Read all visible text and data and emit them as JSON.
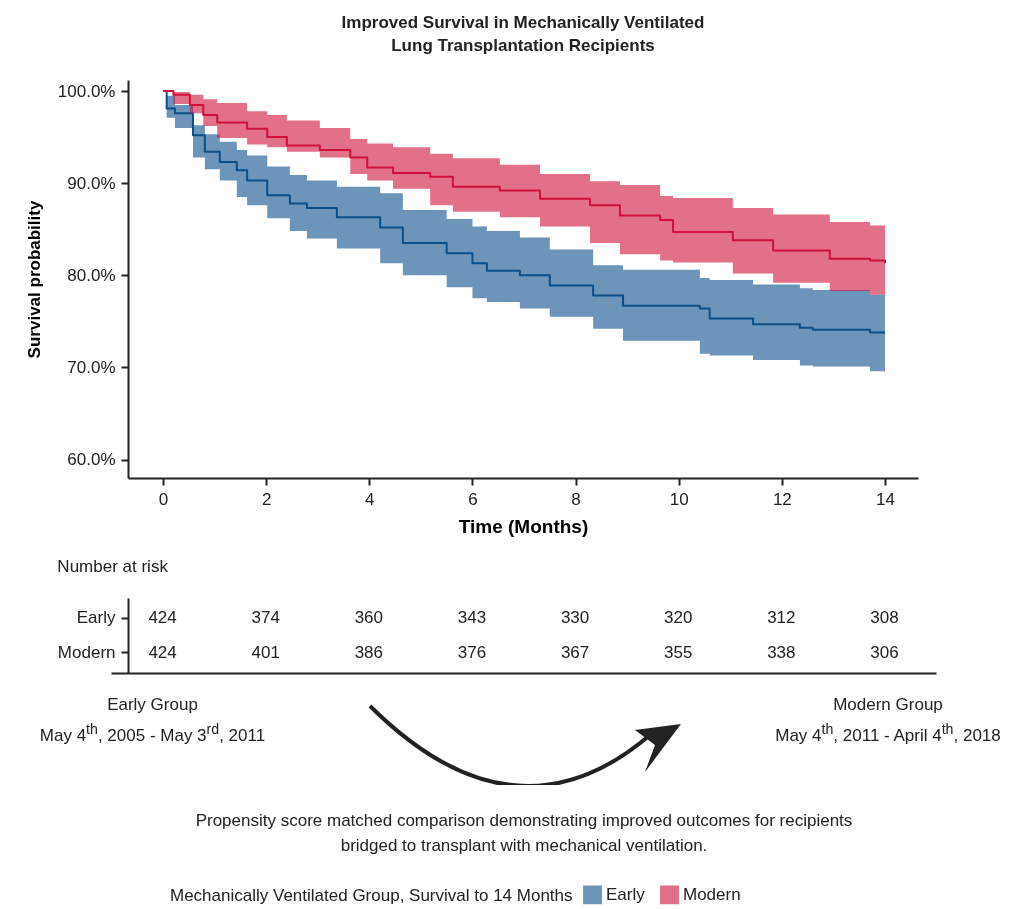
{
  "chart_data": [
    {
      "type": "step",
      "title": "Improved Survival in Mechanically Ventilated Lung Transplantation Recipients",
      "xlabel": "Time (Months)",
      "ylabel": "Survival probability",
      "legend_title": "Mechanically Ventilated Group, Survival to 14 Months",
      "legend": "bottom",
      "xlim": [
        -0.68,
        14.64
      ],
      "ylim": [
        58,
        101.2
      ],
      "xticks": [
        0,
        2,
        4,
        6,
        8,
        10,
        12,
        14
      ],
      "yticks": [
        {
          "value": 60,
          "label": "60.0%"
        },
        {
          "value": 70,
          "label": "70.0%"
        },
        {
          "value": 80,
          "label": "80.0%"
        },
        {
          "value": 90,
          "label": "90.0%"
        },
        {
          "value": 100,
          "label": "100.0%"
        }
      ],
      "series": [
        {
          "name": "Early",
          "color": "#0b4f8a",
          "x": [
            0,
            0.07,
            0.23,
            0.58,
            0.81,
            1.1,
            1.43,
            1.63,
            2.02,
            2.46,
            2.79,
            3.37,
            4.21,
            4.65,
            5.5,
            6.0,
            6.28,
            6.92,
            7.5,
            8.34,
            8.92,
            10.41,
            10.6,
            11.44,
            12.35,
            12.6,
            13.71,
            14
          ],
          "values": [
            100,
            98.1,
            97.6,
            95.2,
            93.4,
            92.3,
            91.4,
            90.3,
            88.7,
            87.8,
            87.3,
            86.3,
            85.2,
            83.5,
            82.4,
            81.3,
            80.5,
            80.0,
            78.9,
            77.8,
            76.7,
            76.4,
            75.3,
            74.7,
            74.3,
            74.1,
            73.8,
            73.8
          ],
          "upper": [
            100,
            99.5,
            98.5,
            96.3,
            95.3,
            94.5,
            93.6,
            93.0,
            91.8,
            90.9,
            90.3,
            89.6,
            88.9,
            87.1,
            86.1,
            85.3,
            84.8,
            84.1,
            82.8,
            81.1,
            80.6,
            79.7,
            79.5,
            79.0,
            78.6,
            78.4,
            77.9,
            77.8
          ],
          "lower": [
            100,
            97.1,
            96.0,
            92.8,
            91.5,
            90.3,
            88.5,
            87.6,
            86.2,
            84.8,
            84.0,
            82.9,
            81.3,
            80.0,
            78.7,
            77.5,
            77.1,
            76.4,
            75.5,
            74.2,
            72.9,
            71.5,
            71.3,
            70.8,
            70.2,
            70.1,
            69.6,
            69.5
          ]
        },
        {
          "name": "Modern",
          "color": "#d0103a",
          "x": [
            0,
            0.2,
            0.52,
            0.78,
            1.05,
            1.63,
            2.02,
            2.4,
            3.04,
            3.63,
            3.96,
            4.46,
            5.18,
            5.62,
            6.53,
            7.31,
            8.28,
            8.86,
            9.64,
            9.89,
            11.05,
            11.83,
            12.93,
            13.71,
            14
          ],
          "values": [
            100,
            99.6,
            98.5,
            97.4,
            96.6,
            95.9,
            95.0,
            94.1,
            93.6,
            92.8,
            91.7,
            91.1,
            90.7,
            89.6,
            89.2,
            88.3,
            87.6,
            86.5,
            86.0,
            84.7,
            83.8,
            82.7,
            81.8,
            81.6,
            81.3
          ],
          "upper": [
            100,
            99.9,
            99.6,
            99.1,
            98.7,
            97.8,
            97.4,
            96.8,
            96.0,
            94.8,
            94.3,
            93.9,
            93.2,
            92.7,
            92.0,
            91.0,
            90.2,
            89.8,
            88.6,
            88.4,
            87.3,
            86.6,
            85.8,
            85.4,
            85.2
          ],
          "lower": [
            100,
            98.6,
            97.6,
            96.2,
            94.9,
            94.2,
            93.9,
            93.4,
            92.8,
            91.0,
            90.3,
            89.4,
            87.6,
            86.9,
            86.3,
            85.3,
            83.5,
            82.3,
            81.6,
            81.4,
            80.2,
            79.2,
            78.3,
            77.9,
            77.8
          ]
        }
      ],
      "annotations": [
        "Early Group\nMay 4$^{th}$, 2005 - May 3$^{rd}$, 2011",
        "Modern Group\nMay 4$^{th}$, 2011 - April 4$^{th}$, 2018",
        "Propensity score matched comparison demonstrating improved outcomes for recipients bridged to transplant with mechanical ventilation."
      ]
    },
    {
      "type": "heatmap",
      "title": "Number at risk",
      "categories": [
        null,
        null,
        null,
        null,
        null,
        null,
        null,
        null
      ],
      "y_categories": [
        "Early",
        "Modern"
      ],
      "tick_labels": "y",
      "data_labels": true,
      "cells": [
        [
          424,
          374,
          360,
          343,
          330,
          320,
          312,
          308
        ],
        [
          424,
          401,
          386,
          376,
          367,
          355,
          338,
          306
        ]
      ]
    }
  ]
}
